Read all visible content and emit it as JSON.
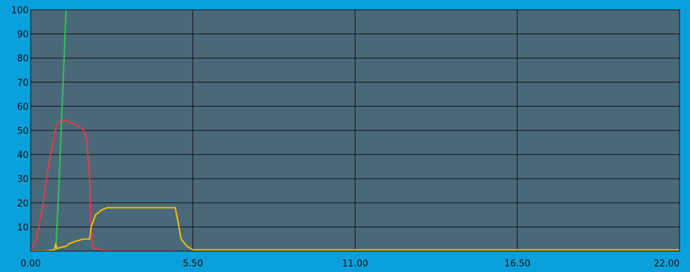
{
  "chart_data": {
    "type": "line",
    "title": "",
    "xlabel": "",
    "ylabel": "",
    "xlim": [
      0,
      22
    ],
    "ylim": [
      0,
      100
    ],
    "x_ticks": [
      0.0,
      5.5,
      11.0,
      16.5,
      22.0
    ],
    "x_tick_labels": [
      "0.00",
      "5.50",
      "11.00",
      "16.50",
      "22.00"
    ],
    "y_ticks": [
      10,
      20,
      30,
      40,
      50,
      60,
      70,
      80,
      90,
      100
    ],
    "y_tick_labels": [
      "10",
      "20",
      "30",
      "40",
      "50",
      "60",
      "70",
      "80",
      "90",
      "100"
    ],
    "grid": true,
    "legend": "none",
    "colors": {
      "page_background": "#0aa0dc",
      "plot_background": "#4a6978",
      "grid": "#111111"
    },
    "series": [
      {
        "color": "#e8384a",
        "x": [
          0.0,
          0.2,
          0.4,
          0.6,
          0.8,
          0.9,
          1.0,
          1.2,
          1.4,
          1.6,
          1.8,
          1.9,
          2.0,
          2.05,
          2.1,
          2.15,
          2.3,
          2.6,
          3.0,
          3.5,
          4.0,
          4.5,
          4.9
        ],
        "y": [
          0,
          5,
          18,
          35,
          48,
          53,
          54,
          54,
          53,
          52,
          50,
          46,
          30,
          10,
          2,
          1,
          1,
          0,
          0,
          0,
          0,
          0,
          0
        ]
      },
      {
        "color": "#2fc25b",
        "x": [
          0.85,
          0.95,
          1.05,
          1.15,
          1.2
        ],
        "y": [
          0,
          25,
          55,
          85,
          100
        ]
      },
      {
        "color": "#f5c000",
        "x": [
          0.0,
          0.5,
          0.8,
          0.85,
          0.9,
          1.0,
          1.2,
          1.3,
          1.5,
          1.8,
          2.0,
          2.05,
          2.2,
          2.4,
          2.6,
          3.0,
          3.5,
          4.0,
          4.5,
          4.9,
          5.0,
          5.1,
          5.3,
          5.5,
          6.0,
          8.0,
          11.0,
          14.0,
          17.0,
          20.0,
          22.0
        ],
        "y": [
          0,
          0,
          0.5,
          3,
          1,
          1.5,
          2,
          3,
          4,
          5,
          5,
          10,
          15,
          17,
          18,
          18,
          18,
          18,
          18,
          18,
          12,
          5,
          2,
          0.5,
          0.5,
          0.5,
          0.5,
          0.5,
          0.5,
          0.5,
          0.5
        ]
      }
    ]
  }
}
